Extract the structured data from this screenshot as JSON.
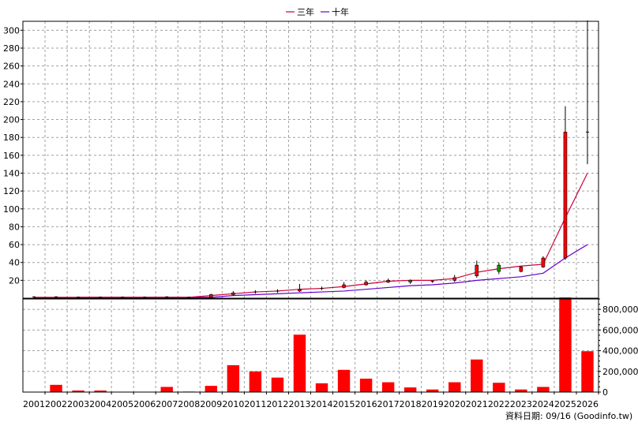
{
  "chart_data": {
    "type": "candlestick",
    "legend": [
      {
        "name": "三年",
        "color": "#cc0033"
      },
      {
        "name": "十年",
        "color": "#6600cc"
      }
    ],
    "footer": "資料日期: 09/16  (Goodinfo.tw)",
    "years": [
      "2001",
      "2002",
      "2003",
      "2004",
      "2005",
      "2006",
      "2007",
      "2008",
      "2009",
      "2010",
      "2011",
      "2012",
      "2013",
      "2014",
      "2015",
      "2016",
      "2017",
      "2018",
      "2019",
      "2020",
      "2021",
      "2022",
      "2023",
      "2024",
      "2025",
      "2026"
    ],
    "price_axis": {
      "min": 0,
      "max": 310,
      "ticks": [
        20,
        40,
        60,
        80,
        100,
        120,
        140,
        160,
        180,
        200,
        220,
        240,
        260,
        280,
        300
      ]
    },
    "volume_axis": {
      "min": 0,
      "max": 900000,
      "ticks": [
        0,
        200000,
        400000,
        600000,
        800000
      ],
      "tick_labels": [
        "0",
        "200,000",
        "400,000",
        "600,000",
        "800,000"
      ]
    },
    "candles": [
      {
        "year": "2001",
        "open": 1.5,
        "close": 1.0,
        "high": 2,
        "low": 0.5
      },
      {
        "year": "2002",
        "open": 1.5,
        "close": 1.0,
        "high": 2,
        "low": 0.5
      },
      {
        "year": "2003",
        "open": 1.2,
        "close": 1.0,
        "high": 1.5,
        "low": 0.5
      },
      {
        "year": "2004",
        "open": 1.2,
        "close": 1.0,
        "high": 1.5,
        "low": 0.5
      },
      {
        "year": "2005",
        "open": 1.2,
        "close": 1.0,
        "high": 1.5,
        "low": 0.5
      },
      {
        "year": "2006",
        "open": 1.2,
        "close": 1.0,
        "high": 1.5,
        "low": 0.5
      },
      {
        "year": "2007",
        "open": 1.5,
        "close": 1.0,
        "high": 2,
        "low": 0.5
      },
      {
        "year": "2008",
        "open": 1.0,
        "close": 0.8,
        "high": 1.2,
        "low": 0.5
      },
      {
        "year": "2009",
        "open": 1.0,
        "close": 4.0,
        "high": 5,
        "low": 0.5
      },
      {
        "year": "2010",
        "open": 4.0,
        "close": 6.0,
        "high": 8,
        "low": 3
      },
      {
        "year": "2011",
        "open": 7.0,
        "close": 6.0,
        "high": 9,
        "low": 5
      },
      {
        "year": "2012",
        "open": 7.0,
        "close": 8.0,
        "high": 10,
        "low": 6
      },
      {
        "year": "2013",
        "open": 8.0,
        "close": 10.0,
        "high": 16,
        "low": 7
      },
      {
        "year": "2014",
        "open": 10.0,
        "close": 11.0,
        "high": 13,
        "low": 9
      },
      {
        "year": "2015",
        "open": 12.0,
        "close": 15.0,
        "high": 18,
        "low": 11
      },
      {
        "year": "2016",
        "open": 15.0,
        "close": 18.0,
        "high": 20,
        "low": 14
      },
      {
        "year": "2017",
        "open": 18.0,
        "close": 20.0,
        "high": 22,
        "low": 17
      },
      {
        "year": "2018",
        "open": 20.0,
        "close": 18.0,
        "high": 21,
        "low": 16
      },
      {
        "year": "2019",
        "open": 18.0,
        "close": 19.0,
        "high": 20,
        "low": 17
      },
      {
        "year": "2020",
        "open": 20.0,
        "close": 23.0,
        "high": 26,
        "low": 18
      },
      {
        "year": "2021",
        "open": 25.0,
        "close": 37.0,
        "high": 42,
        "low": 23
      },
      {
        "year": "2022",
        "open": 37.0,
        "close": 30.0,
        "high": 40,
        "low": 27
      },
      {
        "year": "2023",
        "open": 30.0,
        "close": 35.0,
        "high": 36,
        "low": 29
      },
      {
        "year": "2024",
        "open": 35.0,
        "close": 45.0,
        "high": 47,
        "low": 34
      },
      {
        "year": "2025",
        "open": 45.0,
        "close": 186.0,
        "high": 215,
        "low": 43
      },
      {
        "year": "2026",
        "open": 186.0,
        "close": 186.0,
        "high": 311,
        "low": 150
      }
    ],
    "ma3": [
      1,
      1,
      1,
      1,
      1,
      1,
      1,
      1,
      3,
      5,
      7,
      8,
      10,
      11,
      13,
      16,
      19,
      20,
      20,
      22,
      29,
      33,
      36,
      38,
      90,
      140
    ],
    "ma10": [
      null,
      null,
      1,
      1,
      1,
      1,
      1,
      1,
      1,
      3,
      4,
      5,
      6,
      7,
      8,
      10,
      12,
      14,
      15,
      17,
      20,
      22,
      24,
      28,
      45,
      60
    ],
    "volume": [
      3000,
      70000,
      15000,
      15000,
      3000,
      3000,
      50000,
      5000,
      60000,
      260000,
      200000,
      140000,
      555000,
      85000,
      215000,
      130000,
      95000,
      45000,
      25000,
      95000,
      315000,
      90000,
      25000,
      50000,
      915000,
      395000
    ]
  }
}
